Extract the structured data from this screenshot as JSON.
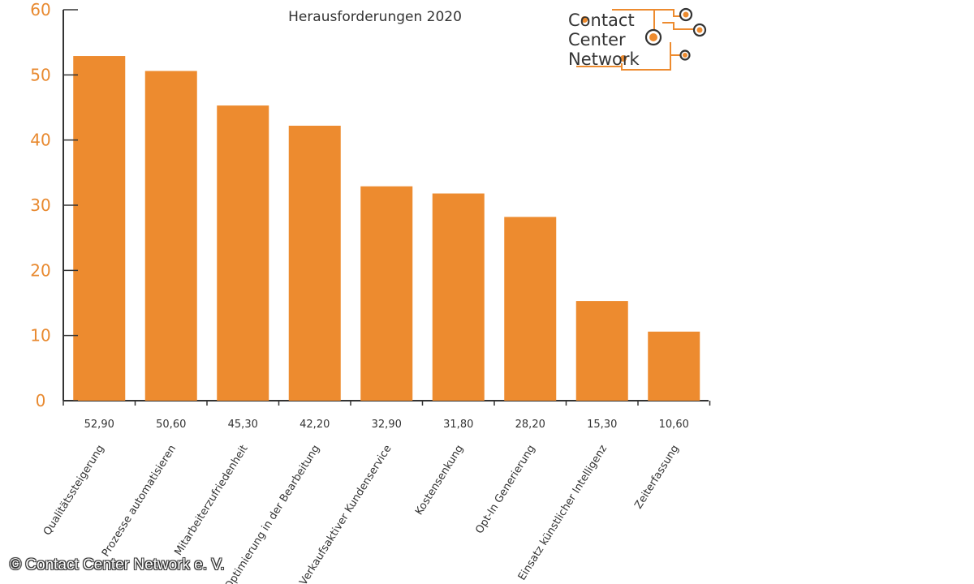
{
  "chart_data": {
    "type": "bar",
    "title": "Herausforderungen 2020",
    "categories": [
      "Qualitätssteigerung",
      "Prozesse automatisieren",
      "Mitarbeiterzufriedenheit",
      "Optimierung in der Bearbeitung",
      "Verkaufsaktiver Kundenservice",
      "Kostensenkung",
      "Opt-In Generierung",
      "Einsatz künstlicher Intelligenz",
      "Zeiterfassung"
    ],
    "values": [
      52.9,
      50.6,
      45.3,
      42.2,
      32.9,
      31.8,
      28.2,
      15.3,
      10.6
    ],
    "value_labels": [
      "52,90",
      "50,60",
      "45,30",
      "42,20",
      "32,90",
      "31,80",
      "28,20",
      "15,30",
      "10,60"
    ],
    "ylim": [
      0,
      60
    ],
    "yticks": [
      0,
      10,
      20,
      30,
      40,
      50,
      60
    ],
    "xlabel": "",
    "ylabel": "",
    "grid": false,
    "bar_color": "#ed8b2f",
    "tick_color": "#e8892f",
    "axis_color": "#333333"
  },
  "logo": {
    "lines": [
      "Contact",
      "Center",
      "Network"
    ],
    "accent_color": "#ed8b2f",
    "ring_color": "#333333"
  },
  "copyright": "© Contact Center Network e. V."
}
